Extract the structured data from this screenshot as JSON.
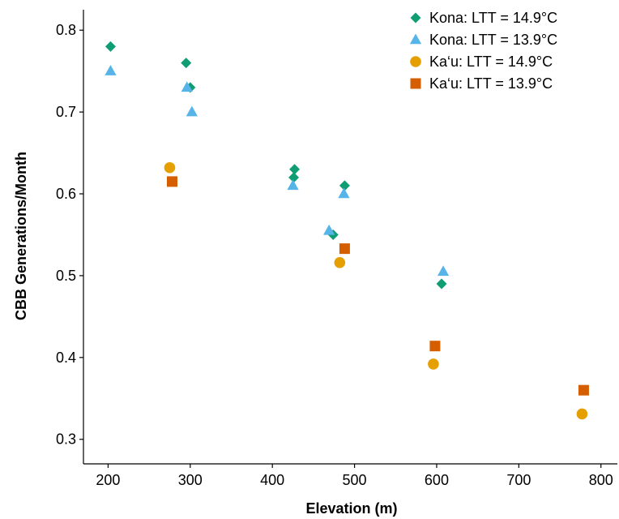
{
  "chart_data": {
    "type": "scatter",
    "xlabel": "Elevation (m)",
    "ylabel": "CBB Generations/Month",
    "xlim": [
      170,
      820
    ],
    "ylim": [
      0.27,
      0.825
    ],
    "xticks": [
      200,
      300,
      400,
      500,
      600,
      700,
      800
    ],
    "yticks": [
      0.3,
      0.4,
      0.5,
      0.6,
      0.7,
      0.8
    ],
    "grid": false,
    "legend_position": "top-right",
    "series": [
      {
        "name": "Kona: LTT = 14.9°C",
        "marker": "diamond",
        "color": "#0f9d73",
        "points": [
          {
            "x": 203,
            "y": 0.78
          },
          {
            "x": 295,
            "y": 0.76
          },
          {
            "x": 300,
            "y": 0.73
          },
          {
            "x": 427,
            "y": 0.63
          },
          {
            "x": 426,
            "y": 0.62
          },
          {
            "x": 488,
            "y": 0.61
          },
          {
            "x": 474,
            "y": 0.55
          },
          {
            "x": 606,
            "y": 0.49
          }
        ]
      },
      {
        "name": "Kona: LTT = 13.9°C",
        "marker": "triangle",
        "color": "#56b4e9",
        "points": [
          {
            "x": 203,
            "y": 0.75
          },
          {
            "x": 296,
            "y": 0.73
          },
          {
            "x": 302,
            "y": 0.7
          },
          {
            "x": 425,
            "y": 0.61
          },
          {
            "x": 487,
            "y": 0.6
          },
          {
            "x": 469,
            "y": 0.555
          },
          {
            "x": 608,
            "y": 0.505
          }
        ]
      },
      {
        "name": "Ka‘u: LTT = 14.9°C",
        "marker": "circle",
        "color": "#e69f00",
        "points": [
          {
            "x": 275,
            "y": 0.632
          },
          {
            "x": 482,
            "y": 0.516
          },
          {
            "x": 596,
            "y": 0.392
          },
          {
            "x": 777,
            "y": 0.331
          }
        ]
      },
      {
        "name": "Ka‘u: LTT = 13.9°C",
        "marker": "square",
        "color": "#d55e00",
        "points": [
          {
            "x": 278,
            "y": 0.615
          },
          {
            "x": 488,
            "y": 0.533
          },
          {
            "x": 598,
            "y": 0.414
          },
          {
            "x": 779,
            "y": 0.36
          }
        ]
      }
    ]
  }
}
